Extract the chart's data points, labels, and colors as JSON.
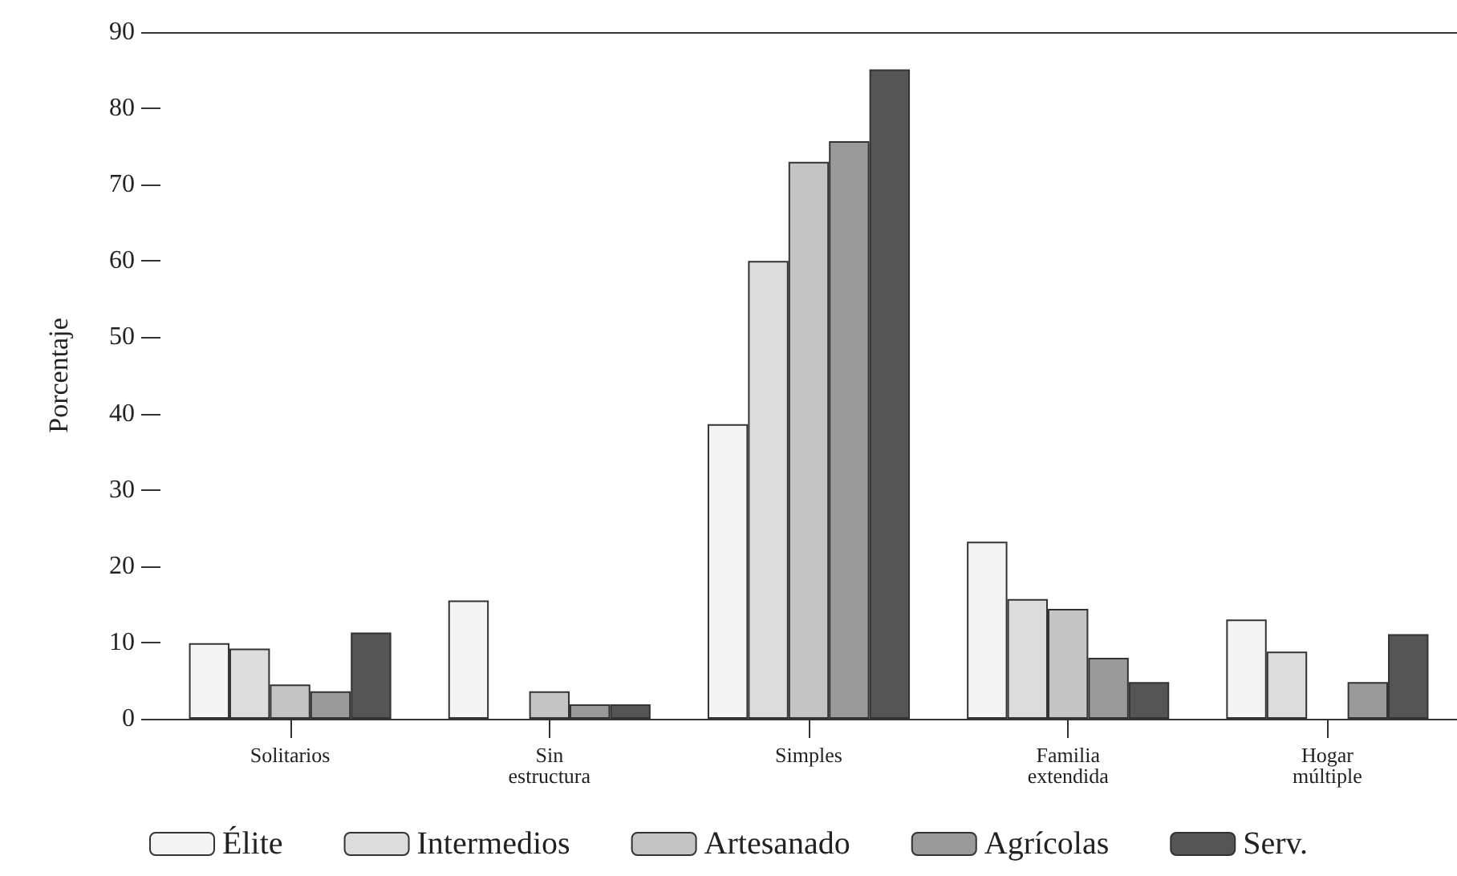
{
  "chart_data": {
    "type": "bar",
    "ylabel": "Porcentaje",
    "categories": [
      "Solitarios",
      "Sin\nestructura",
      "Simples",
      "Familia\nextendida",
      "Hogar\nmúltiple"
    ],
    "series": [
      {
        "name": "Élite",
        "color": "#f4f4f4",
        "values": [
          9.9,
          15.5,
          38.6,
          23.2,
          13.0
        ]
      },
      {
        "name": "Intermedios",
        "color": "#dcdcdc",
        "values": [
          9.2,
          null,
          60.0,
          15.7,
          8.8
        ]
      },
      {
        "name": "Artesanado",
        "color": "#c4c4c4",
        "values": [
          4.5,
          3.6,
          73.0,
          14.4,
          null
        ]
      },
      {
        "name": "Agrícolas",
        "color": "#9a9a9a",
        "values": [
          3.6,
          1.9,
          75.7,
          8.0,
          4.8
        ]
      },
      {
        "name": "Serv.",
        "color": "#555555",
        "values": [
          11.3,
          1.9,
          85.1,
          4.8,
          11.1
        ]
      }
    ],
    "ylim": [
      0,
      90
    ],
    "yticks": [
      0,
      10,
      20,
      30,
      40,
      50,
      60,
      70,
      80,
      90
    ],
    "grid": false,
    "legend": "bottom"
  }
}
